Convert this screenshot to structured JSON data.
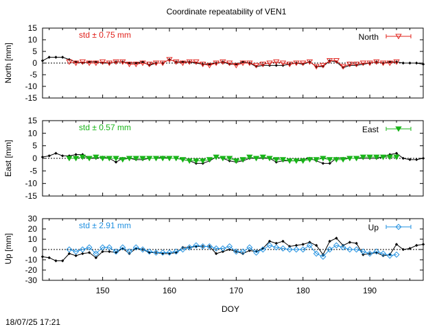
{
  "title": "Coordinate repeatability of VEN1",
  "timestamp": "18/07/25 17:21",
  "xlabel": "DOY",
  "colors": {
    "model": "#000000",
    "north": "#e0201a",
    "east": "#18b418",
    "up": "#2090e0",
    "grid": "#000000"
  },
  "chart_data": [
    {
      "type": "line",
      "name": "north",
      "ylabel": "North [mm]",
      "legend": "North",
      "legend_position": "top-right",
      "std_label": "std ± 0.75 mm",
      "marker": "triangle-down-open",
      "xlim": [
        141,
        198
      ],
      "ylim": [
        -15,
        15
      ],
      "yticks": [
        -15,
        -10,
        -5,
        0,
        5,
        10,
        15
      ],
      "xticks": [
        150,
        160,
        170,
        180,
        190
      ],
      "zero_line": true,
      "model_series": {
        "x": [
          141,
          142,
          143,
          144,
          145,
          146,
          147,
          148,
          149,
          150,
          151,
          152,
          153,
          154,
          155,
          156,
          157,
          158,
          159,
          160,
          161,
          162,
          163,
          164,
          165,
          166,
          167,
          168,
          169,
          170,
          171,
          172,
          173,
          174,
          175,
          176,
          177,
          178,
          179,
          180,
          181,
          182,
          183,
          184,
          185,
          186,
          187,
          188,
          189,
          190,
          191,
          192,
          193,
          194,
          195,
          196,
          197,
          198
        ],
        "y": [
          1,
          2.5,
          2.5,
          2.5,
          1.5,
          0.5,
          0,
          0.5,
          0.5,
          0,
          0,
          0.5,
          0.5,
          0,
          0,
          0.5,
          -1,
          0,
          0,
          1.5,
          0.5,
          0.5,
          0.5,
          0,
          -0.5,
          -0.5,
          0,
          0.5,
          -0.5,
          -0.5,
          0.5,
          0,
          -1.5,
          -1,
          -1,
          -1,
          -1,
          -0.5,
          0,
          -0.5,
          0.5,
          -1.5,
          -1.5,
          1,
          0.5,
          -2,
          -1,
          -1,
          -0.5,
          0,
          0.5,
          0,
          0.5,
          0.5,
          0,
          0,
          0,
          -0.5
        ]
      },
      "obs_series": {
        "x": [
          145,
          146,
          147,
          148,
          149,
          150,
          151,
          152,
          153,
          154,
          155,
          156,
          157,
          158,
          159,
          160,
          161,
          162,
          163,
          164,
          165,
          166,
          167,
          168,
          169,
          170,
          171,
          172,
          173,
          174,
          175,
          176,
          177,
          178,
          179,
          180,
          181,
          182,
          183,
          184,
          185,
          186,
          187,
          188,
          189,
          190,
          191,
          192,
          193,
          194
        ],
        "y": [
          0.5,
          0,
          0.5,
          0,
          0,
          0.5,
          0,
          0.5,
          0.5,
          -0.5,
          -0.5,
          0,
          -0.5,
          0,
          0,
          1.5,
          0.5,
          0,
          0.5,
          0.5,
          -0.5,
          -1,
          0,
          0.5,
          0,
          -1,
          0,
          0,
          -1,
          -0.5,
          0,
          0.5,
          0,
          -0.5,
          0,
          0,
          0.5,
          -1.5,
          -1,
          1,
          1,
          -1.5,
          -0.5,
          -0.5,
          0,
          0,
          0.5,
          0,
          0,
          0.5
        ]
      }
    },
    {
      "type": "line",
      "name": "east",
      "ylabel": "East [mm]",
      "legend": "East",
      "legend_position": "top-right",
      "std_label": "std ± 0.57 mm",
      "marker": "triangle-down-filled",
      "xlim": [
        141,
        198
      ],
      "ylim": [
        -15,
        15
      ],
      "yticks": [
        -15,
        -10,
        -5,
        0,
        5,
        10,
        15
      ],
      "xticks": [
        150,
        160,
        170,
        180,
        190
      ],
      "zero_line": true,
      "model_series": {
        "x": [
          141,
          142,
          143,
          144,
          145,
          146,
          147,
          148,
          149,
          150,
          151,
          152,
          153,
          154,
          155,
          156,
          157,
          158,
          159,
          160,
          161,
          162,
          163,
          164,
          165,
          166,
          167,
          168,
          169,
          170,
          171,
          172,
          173,
          174,
          175,
          176,
          177,
          178,
          179,
          180,
          181,
          182,
          183,
          184,
          185,
          186,
          187,
          188,
          189,
          190,
          191,
          192,
          193,
          194,
          195,
          196,
          197,
          198
        ],
        "y": [
          0.5,
          1,
          2,
          1,
          1,
          1.5,
          1.5,
          0,
          0,
          0.5,
          0,
          -1.5,
          0,
          0,
          -0.5,
          -0.5,
          0,
          0,
          0.5,
          0,
          0,
          -0.5,
          -1,
          -2,
          -2,
          -1,
          0.5,
          0,
          -1,
          -1.5,
          -1,
          0,
          0,
          0,
          0,
          -1.5,
          -1,
          -1,
          -1,
          -0.5,
          0,
          -1,
          -2,
          -2,
          0,
          0,
          0,
          0,
          0,
          0,
          0,
          0.5,
          1.5,
          2,
          0,
          -0.5,
          -0.5,
          0
        ]
      },
      "obs_series": {
        "x": [
          145,
          146,
          147,
          148,
          149,
          150,
          151,
          152,
          153,
          154,
          155,
          156,
          157,
          158,
          159,
          160,
          161,
          162,
          163,
          164,
          165,
          166,
          167,
          168,
          169,
          170,
          171,
          172,
          173,
          174,
          175,
          176,
          177,
          178,
          179,
          180,
          181,
          182,
          183,
          184,
          185,
          186,
          187,
          188,
          189,
          190,
          191,
          192,
          193,
          194
        ],
        "y": [
          0,
          0,
          0.5,
          0,
          0.5,
          0,
          0,
          0,
          -0.5,
          0,
          0,
          0,
          0,
          0,
          0,
          0,
          0,
          -0.5,
          -1,
          -1,
          -1,
          -0.5,
          0.5,
          0,
          0,
          -1,
          -0.5,
          0.5,
          0,
          0.5,
          0,
          -0.5,
          -0.5,
          -1,
          -1,
          -1,
          -0.5,
          -0.5,
          0,
          -0.5,
          -0.5,
          -0.5,
          0,
          0,
          0.5,
          0.5,
          0.5,
          0.5,
          0.5,
          0.5
        ]
      }
    },
    {
      "type": "line",
      "name": "up",
      "ylabel": "Up [mm]",
      "legend": "Up",
      "legend_position": "top-right",
      "std_label": "std ± 2.91 mm",
      "marker": "diamond-open",
      "xlim": [
        141,
        198
      ],
      "ylim": [
        -30,
        30
      ],
      "yticks": [
        -30,
        -20,
        -10,
        0,
        10,
        20,
        30
      ],
      "xticks": [
        150,
        160,
        170,
        180,
        190
      ],
      "zero_line": true,
      "model_series": {
        "x": [
          141,
          142,
          143,
          144,
          145,
          146,
          147,
          148,
          149,
          150,
          151,
          152,
          153,
          154,
          155,
          156,
          157,
          158,
          159,
          160,
          161,
          162,
          163,
          164,
          165,
          166,
          167,
          168,
          169,
          170,
          171,
          172,
          173,
          174,
          175,
          176,
          177,
          178,
          179,
          180,
          181,
          182,
          183,
          184,
          185,
          186,
          187,
          188,
          189,
          190,
          191,
          192,
          193,
          194,
          195,
          196,
          197,
          198
        ],
        "y": [
          -7,
          -8,
          -11,
          -11,
          -4,
          -6,
          -4,
          -3,
          -8,
          -2,
          -2,
          -3,
          1,
          -4,
          1,
          0,
          -3,
          -3,
          -4,
          -4,
          -3,
          2,
          2,
          3,
          3,
          3,
          -4,
          -2,
          0,
          -2,
          -4,
          -1,
          -2,
          1,
          8,
          6,
          8,
          3,
          4,
          5,
          7,
          4,
          -5,
          8,
          11,
          4,
          7,
          6,
          -5,
          -4,
          -3,
          -6,
          -5,
          5,
          0,
          1,
          4,
          5
        ]
      },
      "obs_series": {
        "x": [
          145,
          146,
          147,
          148,
          149,
          150,
          151,
          152,
          153,
          154,
          155,
          156,
          157,
          158,
          159,
          160,
          161,
          162,
          163,
          164,
          165,
          166,
          167,
          168,
          169,
          170,
          171,
          172,
          173,
          174,
          175,
          176,
          177,
          178,
          179,
          180,
          181,
          182,
          183,
          184,
          185,
          186,
          187,
          188,
          189,
          190,
          191,
          192,
          193,
          194
        ],
        "y": [
          0,
          -2,
          0,
          2,
          -4,
          2,
          2,
          -2,
          2,
          -2,
          2,
          0,
          -2,
          -3,
          -3,
          -3,
          -2,
          0,
          2,
          4,
          3,
          3,
          1,
          1,
          3,
          -2,
          -2,
          2,
          -3,
          0,
          4,
          2,
          1,
          0,
          0,
          0,
          4,
          -4,
          -7,
          0,
          4,
          2,
          0,
          0,
          -2,
          -4,
          -2,
          -4,
          -6,
          -5
        ]
      }
    }
  ]
}
